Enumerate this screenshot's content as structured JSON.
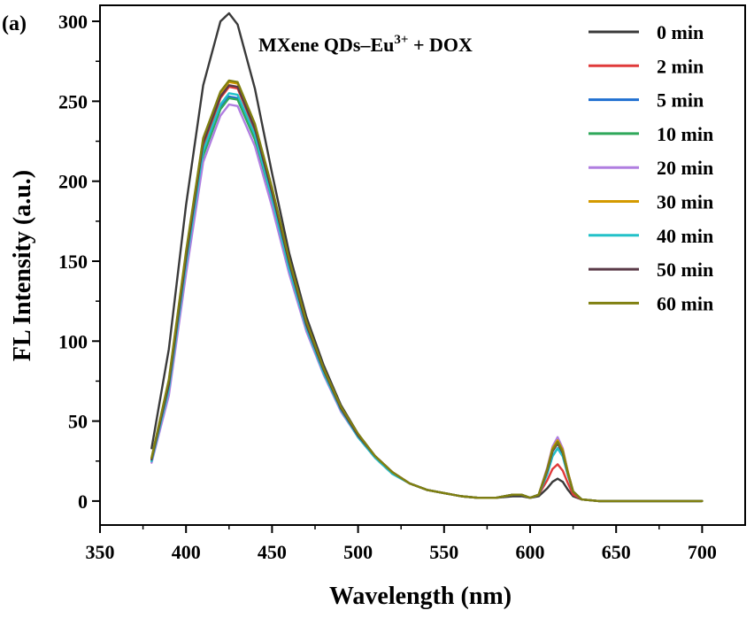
{
  "panel_label": "(a)",
  "annotation": {
    "prefix": "MXene QDs–Eu",
    "superscript": "3+",
    "suffix": " + DOX"
  },
  "chart_data": {
    "type": "line",
    "title": "",
    "xlabel": "Wavelength (nm)",
    "ylabel": "FL Intensity (a.u.)",
    "xlim": [
      350,
      725
    ],
    "ylim": [
      -15,
      310
    ],
    "xticks": [
      350,
      400,
      450,
      500,
      550,
      600,
      650,
      700
    ],
    "yticks": [
      0,
      50,
      100,
      150,
      200,
      250,
      300
    ],
    "grid": false,
    "legend_position": "top-right",
    "x": [
      380,
      390,
      400,
      410,
      420,
      425,
      430,
      440,
      450,
      460,
      470,
      480,
      490,
      500,
      510,
      520,
      530,
      540,
      550,
      560,
      570,
      580,
      590,
      595,
      600,
      605,
      610,
      613,
      616,
      619,
      622,
      625,
      630,
      640,
      650,
      660,
      670,
      680,
      690,
      700
    ],
    "series": [
      {
        "name": "0 min",
        "color": "#3a3a3a",
        "values": [
          33,
          95,
          185,
          260,
          300,
          305,
          298,
          258,
          205,
          155,
          115,
          85,
          60,
          42,
          28,
          18,
          11,
          7,
          5,
          3,
          2,
          2,
          3,
          3,
          2,
          3,
          8,
          12,
          14,
          12,
          7,
          3,
          1,
          0,
          0,
          0,
          0,
          0,
          0,
          0
        ]
      },
      {
        "name": "2 min",
        "color": "#e03a3a",
        "values": [
          26,
          72,
          150,
          222,
          252,
          259,
          258,
          232,
          192,
          148,
          110,
          82,
          58,
          41,
          28,
          18,
          11,
          7,
          5,
          3,
          2,
          2,
          4,
          4,
          2,
          4,
          13,
          20,
          23,
          19,
          11,
          4,
          1,
          0,
          0,
          0,
          0,
          0,
          0,
          0
        ]
      },
      {
        "name": "5 min",
        "color": "#1f6fd1",
        "values": [
          25,
          70,
          147,
          217,
          246,
          253,
          252,
          227,
          188,
          145,
          108,
          80,
          57,
          40,
          27,
          17,
          11,
          7,
          5,
          3,
          2,
          2,
          4,
          4,
          2,
          4,
          17,
          28,
          33,
          28,
          16,
          6,
          1,
          0,
          0,
          0,
          0,
          0,
          0,
          0
        ]
      },
      {
        "name": "10 min",
        "color": "#2fa85a",
        "values": [
          25,
          69,
          146,
          216,
          245,
          252,
          251,
          226,
          187,
          144,
          107,
          80,
          57,
          40,
          27,
          17,
          11,
          7,
          5,
          3,
          2,
          2,
          4,
          4,
          2,
          4,
          20,
          33,
          38,
          32,
          18,
          6,
          1,
          0,
          0,
          0,
          0,
          0,
          0,
          0
        ]
      },
      {
        "name": "20 min",
        "color": "#b07ee0",
        "values": [
          24,
          66,
          142,
          212,
          241,
          248,
          247,
          222,
          184,
          142,
          106,
          79,
          56,
          40,
          27,
          17,
          11,
          7,
          5,
          3,
          2,
          2,
          4,
          4,
          2,
          4,
          21,
          34,
          40,
          33,
          18,
          6,
          1,
          0,
          0,
          0,
          0,
          0,
          0,
          0
        ]
      },
      {
        "name": "30 min",
        "color": "#d49a00",
        "values": [
          27,
          75,
          155,
          226,
          255,
          262,
          261,
          235,
          195,
          150,
          111,
          82,
          58,
          41,
          28,
          18,
          11,
          7,
          5,
          3,
          2,
          2,
          4,
          4,
          2,
          4,
          20,
          33,
          38,
          32,
          18,
          6,
          1,
          0,
          0,
          0,
          0,
          0,
          0,
          0
        ]
      },
      {
        "name": "40 min",
        "color": "#22c1c8",
        "values": [
          25,
          70,
          148,
          219,
          248,
          255,
          254,
          229,
          189,
          145,
          108,
          80,
          57,
          40,
          27,
          17,
          11,
          7,
          5,
          3,
          2,
          2,
          4,
          4,
          2,
          4,
          17,
          28,
          33,
          28,
          16,
          6,
          1,
          0,
          0,
          0,
          0,
          0,
          0,
          0
        ]
      },
      {
        "name": "50 min",
        "color": "#5a3a48",
        "values": [
          26,
          73,
          152,
          224,
          253,
          260,
          259,
          233,
          193,
          149,
          110,
          82,
          58,
          41,
          28,
          18,
          11,
          7,
          5,
          3,
          2,
          2,
          4,
          4,
          2,
          4,
          19,
          31,
          36,
          30,
          17,
          6,
          1,
          0,
          0,
          0,
          0,
          0,
          0,
          0
        ]
      },
      {
        "name": "60 min",
        "color": "#808010",
        "values": [
          27,
          76,
          156,
          227,
          256,
          263,
          262,
          236,
          196,
          151,
          112,
          83,
          59,
          42,
          28,
          18,
          11,
          7,
          5,
          3,
          2,
          2,
          4,
          4,
          2,
          4,
          20,
          32,
          37,
          31,
          17,
          6,
          1,
          0,
          0,
          0,
          0,
          0,
          0,
          0
        ]
      }
    ]
  }
}
